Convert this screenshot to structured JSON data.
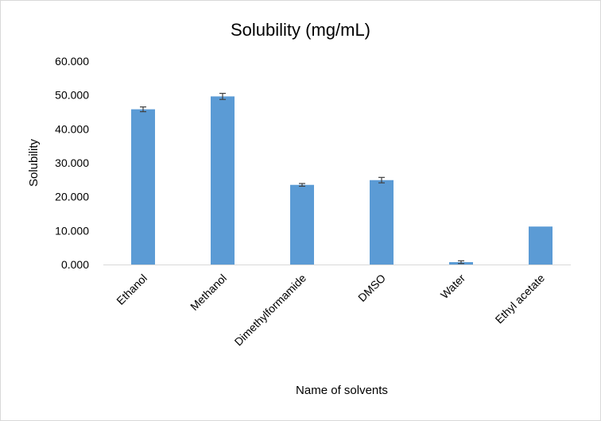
{
  "chart_data": {
    "type": "bar",
    "title": "Solubility (mg/mL)",
    "xlabel": "Name of solvents",
    "ylabel": "Solubility",
    "categories": [
      "Ethanol",
      "Methanol",
      "Dimethylformamide",
      "DMSO",
      "Water",
      "Ethyl acetate"
    ],
    "values": [
      45.8,
      49.6,
      23.5,
      24.9,
      0.7,
      11.2
    ],
    "error": [
      0.7,
      0.9,
      0.4,
      0.8,
      0.4,
      0.0
    ],
    "ylim": [
      0,
      60
    ],
    "yticks": [
      "0.000",
      "10.000",
      "20.000",
      "30.000",
      "40.000",
      "50.000",
      "60.000"
    ],
    "grid": false,
    "legend": "none",
    "bar_color": "#5B9BD5",
    "error_color": "#404040"
  }
}
